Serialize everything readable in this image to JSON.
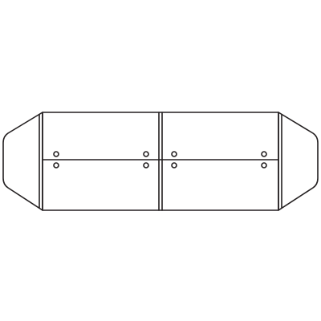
{
  "colors": {
    "stroke": "#231f20",
    "fill": "#ffffff",
    "background": "#ffffff"
  }
}
